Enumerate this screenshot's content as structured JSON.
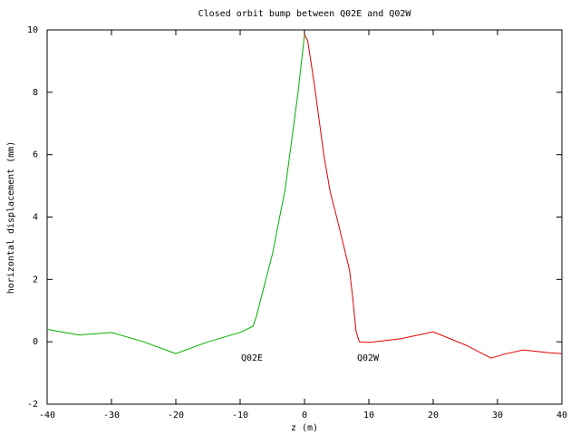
{
  "chart_data": {
    "type": "line",
    "title": "Closed orbit bump between Q02E and Q02W",
    "x_label": "z (m)",
    "y_label": "horizontal displacement (mm)",
    "annotations": [
      "Q02E",
      "Q02W"
    ],
    "series": [
      {
        "color": "#00b000",
        "x": [
          -40,
          -35,
          -30,
          -25,
          -20,
          -15,
          -10,
          -8,
          -7.5,
          -5,
          -3,
          -1,
          0
        ],
        "values": [
          0.4,
          0.22,
          0.3,
          0,
          -0.38,
          0,
          0.3,
          0.5,
          0.8,
          2.8,
          4.9,
          8.0,
          9.85
        ]
      },
      {
        "color": "#e00000",
        "x": [
          0,
          0.5,
          1.5,
          3,
          4,
          5,
          7,
          7.5,
          8,
          8.5,
          10,
          15,
          20,
          25,
          29,
          31,
          34,
          38,
          40
        ],
        "values": [
          9.85,
          9.65,
          8.3,
          6.0,
          4.8,
          4.0,
          2.3,
          1.4,
          0.35,
          0,
          -0.02,
          0.1,
          0.32,
          -0.1,
          -0.52,
          -0.4,
          -0.26,
          -0.35,
          -0.38
        ]
      }
    ],
    "xlim": [
      -40,
      40
    ],
    "xticks": [
      -40,
      -30,
      -20,
      -10,
      0,
      10,
      20,
      30,
      40
    ],
    "ylim": [
      -2,
      10
    ],
    "yticks": [
      -2,
      0,
      2,
      4,
      6,
      8,
      10
    ],
    "grid": false
  }
}
